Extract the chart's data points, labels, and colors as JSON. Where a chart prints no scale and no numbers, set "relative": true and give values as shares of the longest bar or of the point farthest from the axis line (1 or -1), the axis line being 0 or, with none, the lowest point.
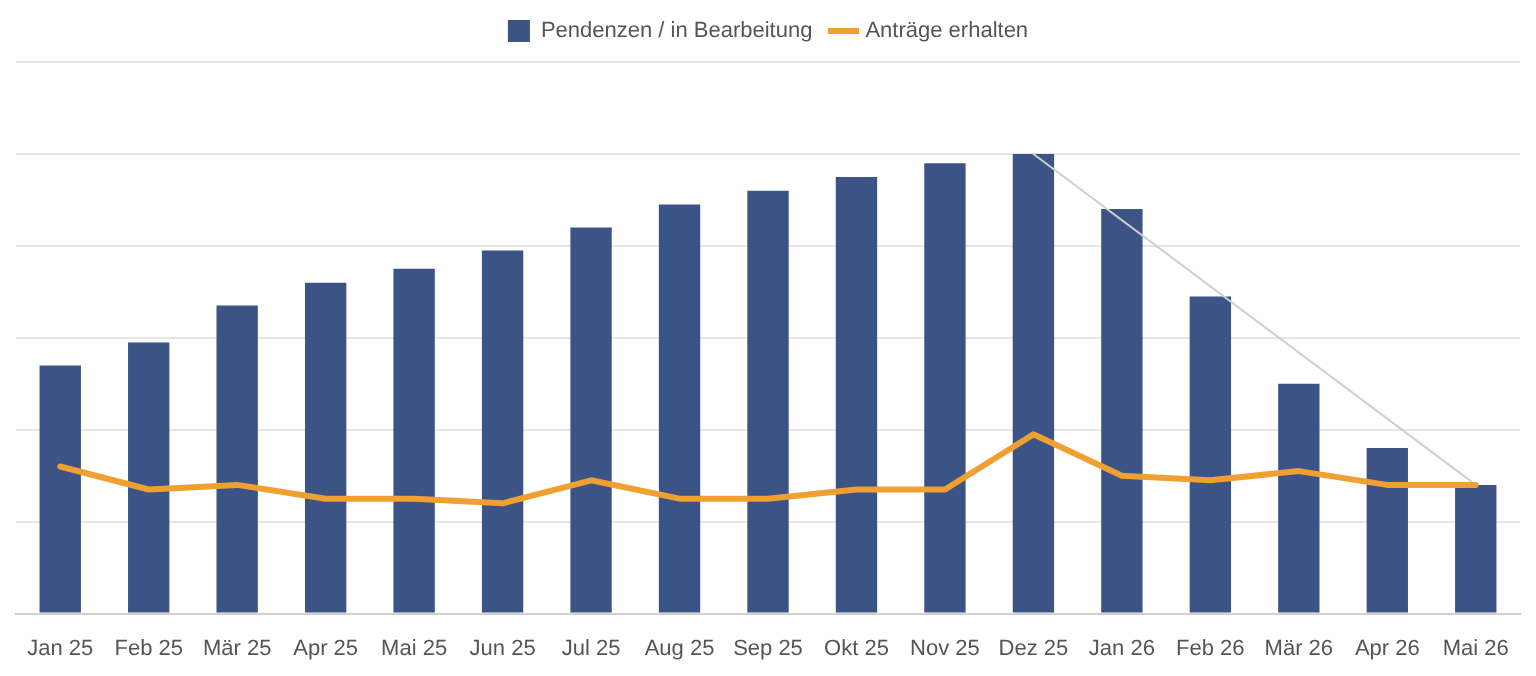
{
  "chart_data": {
    "type": "bar",
    "relative": true,
    "grid": "y",
    "legend": "top",
    "categories": [
      "Jan 25",
      "Feb 25",
      "Mär 25",
      "Apr 25",
      "Mai 25",
      "Jun 25",
      "Jul 25",
      "Aug 25",
      "Sep 25",
      "Okt 25",
      "Nov 25",
      "Dez 25",
      "Jan 26",
      "Feb 26",
      "Mär 26",
      "Apr 26",
      "Mai 26"
    ],
    "series": [
      {
        "name": "Pendenzen / in Bearbeitung",
        "color": "#3c5386",
        "values": [
          0.54,
          0.59,
          0.67,
          0.72,
          0.75,
          0.79,
          0.84,
          0.89,
          0.92,
          0.95,
          0.98,
          1,
          0.88,
          0.69,
          0.5,
          0.36,
          0.28
        ]
      },
      {
        "name": "Anträge erhalten",
        "type": "line",
        "color": "#f0a030",
        "marker": "none",
        "values": [
          0.32,
          0.27,
          0.28,
          0.25,
          0.25,
          0.24,
          0.29,
          0.25,
          0.25,
          0.27,
          0.27,
          0.39,
          0.3,
          0.29,
          0.31,
          0.28,
          0.28
        ]
      },
      {
        "type": "line",
        "color": "#cfcfcf",
        "marker": "none",
        "values": [
          null,
          null,
          null,
          null,
          null,
          null,
          null,
          null,
          null,
          null,
          null,
          1,
          null,
          null,
          null,
          null,
          0.28
        ]
      }
    ]
  }
}
